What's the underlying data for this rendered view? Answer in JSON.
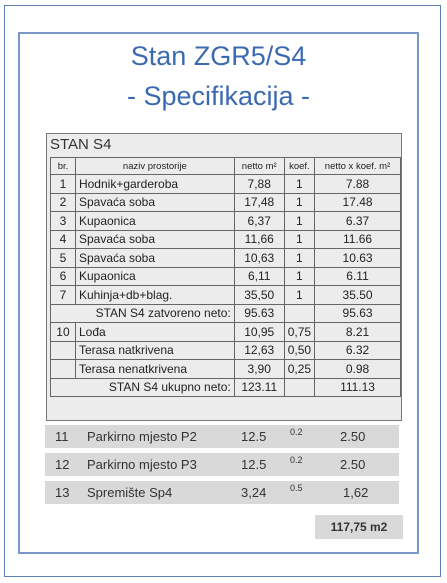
{
  "title_line1": "Stan ZGR5/S4",
  "title_line2": "- Specifikacija -",
  "spec_header": "STAN S4",
  "columns": [
    "br.",
    "naziv prostorije",
    "netto m²",
    "koef.",
    "netto x koef. m²"
  ],
  "rooms": [
    {
      "br": "1",
      "name": "Hodnik+garderoba",
      "netto": "7,88",
      "koef": "1",
      "result": "7.88"
    },
    {
      "br": "2",
      "name": "Spavaća soba",
      "netto": "17,48",
      "koef": "1",
      "result": "17.48"
    },
    {
      "br": "3",
      "name": "Kupaonica",
      "netto": "6,37",
      "koef": "1",
      "result": "6.37"
    },
    {
      "br": "4",
      "name": "Spavaća soba",
      "netto": "11,66",
      "koef": "1",
      "result": "11.66"
    },
    {
      "br": "5",
      "name": "Spavaća soba",
      "netto": "10,63",
      "koef": "1",
      "result": "10.63"
    },
    {
      "br": "6",
      "name": "Kupaonica",
      "netto": "6,11",
      "koef": "1",
      "result": "6.11"
    },
    {
      "br": "7",
      "name": "Kuhinja+db+blag.",
      "netto": "35,50",
      "koef": "1",
      "result": "35.50"
    }
  ],
  "closed_total": {
    "label": "STAN S4 zatvoreno neto:",
    "netto": "95.63",
    "result": "95.63"
  },
  "outdoor": [
    {
      "br": "10",
      "name": "Lođa",
      "netto": "10,95",
      "koef": "0,75",
      "result": "8.21"
    },
    {
      "br": "",
      "name": "Terasa natkrivena",
      "netto": "12,63",
      "koef": "0,50",
      "result": "6.32"
    },
    {
      "br": "",
      "name": "Terasa nenatkrivena",
      "netto": "3,90",
      "koef": "0,25",
      "result": "0.98"
    }
  ],
  "grand_total": {
    "label": "STAN S4 ukupno neto:",
    "netto": "123.11",
    "result": "111.13"
  },
  "extras": [
    {
      "br": "11",
      "name": "Parkirno mjesto P2",
      "netto": "12.5",
      "koef": "0.2",
      "result": "2.50"
    },
    {
      "br": "12",
      "name": "Parkirno mjesto P3",
      "netto": "12.5",
      "koef": "0.2",
      "result": "2.50"
    },
    {
      "br": "13",
      "name": "Spremište Sp4",
      "netto": "3,24",
      "koef": "0.5",
      "result": "1,62"
    }
  ],
  "final_total": "117,75 m2"
}
